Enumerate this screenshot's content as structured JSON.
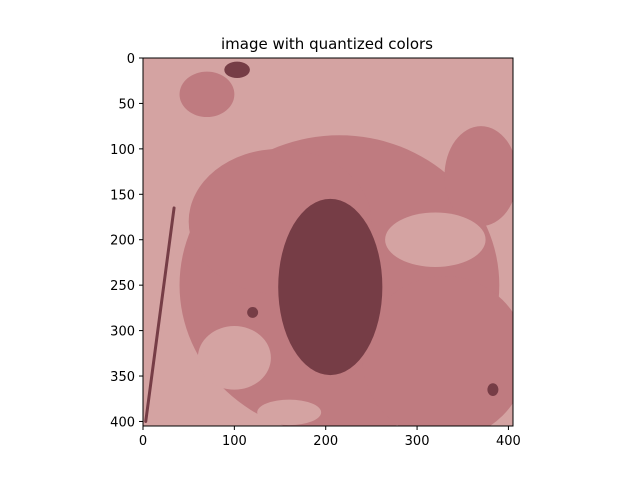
{
  "chart_data": {
    "type": "heatmap",
    "title": "image with quantized colors",
    "xlabel": "",
    "ylabel": "",
    "xlim": [
      0,
      405
    ],
    "ylim": [
      405,
      0
    ],
    "x_ticks": [
      0,
      100,
      200,
      300,
      400
    ],
    "y_ticks": [
      0,
      50,
      100,
      150,
      200,
      250,
      300,
      350,
      400
    ],
    "grid": false,
    "palette": {
      "light": "#d4a3a2",
      "medium": "#bf7b80",
      "dark": "#763d46"
    },
    "regions": [
      {
        "level": "medium",
        "shape": "ellipse",
        "cx": 215,
        "cy": 250,
        "rx": 175,
        "ry": 165
      },
      {
        "level": "medium",
        "shape": "ellipse",
        "cx": 150,
        "cy": 180,
        "rx": 100,
        "ry": 80
      },
      {
        "level": "medium",
        "shape": "ellipse",
        "cx": 330,
        "cy": 330,
        "rx": 90,
        "ry": 90
      },
      {
        "level": "medium",
        "shape": "ellipse",
        "cx": 70,
        "cy": 40,
        "rx": 30,
        "ry": 25
      },
      {
        "level": "medium",
        "shape": "ellipse",
        "cx": 370,
        "cy": 130,
        "rx": 40,
        "ry": 55
      },
      {
        "level": "light",
        "shape": "ellipse",
        "cx": 100,
        "cy": 330,
        "rx": 40,
        "ry": 35
      },
      {
        "level": "light",
        "shape": "ellipse",
        "cx": 320,
        "cy": 200,
        "rx": 55,
        "ry": 30
      },
      {
        "level": "light",
        "shape": "ellipse",
        "cx": 160,
        "cy": 390,
        "rx": 35,
        "ry": 14
      },
      {
        "level": "dark",
        "shape": "ellipse",
        "cx": 205,
        "cy": 252,
        "rx": 57,
        "ry": 97
      },
      {
        "level": "dark",
        "shape": "ellipse",
        "cx": 103,
        "cy": 13,
        "rx": 14,
        "ry": 9
      },
      {
        "level": "dark",
        "shape": "ellipse",
        "cx": 383,
        "cy": 365,
        "rx": 6,
        "ry": 7
      },
      {
        "level": "dark",
        "shape": "ellipse",
        "cx": 120,
        "cy": 280,
        "rx": 6,
        "ry": 6
      },
      {
        "level": "dark",
        "shape": "streak",
        "x1": 3,
        "y1": 400,
        "x2": 34,
        "y2": 165
      }
    ]
  }
}
